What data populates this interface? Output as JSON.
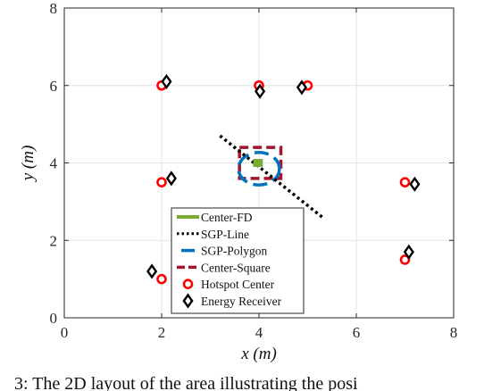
{
  "chart_data": {
    "type": "scatter",
    "title": "",
    "xlabel": "x (m)",
    "ylabel": "y (m)",
    "xlim": [
      0,
      8
    ],
    "ylim": [
      0,
      8
    ],
    "xticks": [
      0,
      2,
      4,
      6,
      8
    ],
    "yticks": [
      0,
      2,
      4,
      6,
      8
    ],
    "grid": true,
    "legend_position": "bottom-center",
    "series": [
      {
        "name": "Center-FD",
        "kind": "square-patch",
        "color": "#77ac30",
        "center": [
          3.98,
          4.0
        ],
        "half_size": 0.08
      },
      {
        "name": "SGP-Line",
        "kind": "dotted-line",
        "color": "#000000",
        "x": [
          3.2,
          5.3
        ],
        "y": [
          4.7,
          2.6
        ]
      },
      {
        "name": "SGP-Polygon",
        "kind": "dashed-circle",
        "color": "#0072bd",
        "center": [
          4.0,
          3.85
        ],
        "radius": 0.42
      },
      {
        "name": "Center-Square",
        "kind": "dashed-square",
        "color": "#a2142f",
        "x_range": [
          3.6,
          4.45
        ],
        "y_range": [
          3.6,
          4.4
        ]
      },
      {
        "name": "Hotspot Center",
        "kind": "circle-marker",
        "color": "#ff0000",
        "x": [
          2,
          4,
          5,
          2,
          7,
          2,
          7
        ],
        "y": [
          6,
          6,
          6,
          3.5,
          3.5,
          1,
          1.5
        ]
      },
      {
        "name": "Energy Receiver",
        "kind": "diamond-marker",
        "color": "#000000",
        "x": [
          2.1,
          4.02,
          4.88,
          2.2,
          7.2,
          1.8,
          7.08
        ],
        "y": [
          6.1,
          5.85,
          5.95,
          3.6,
          3.45,
          1.2,
          1.7
        ]
      }
    ],
    "caption": "3: The 2D layout of the area illustrating the posi"
  }
}
